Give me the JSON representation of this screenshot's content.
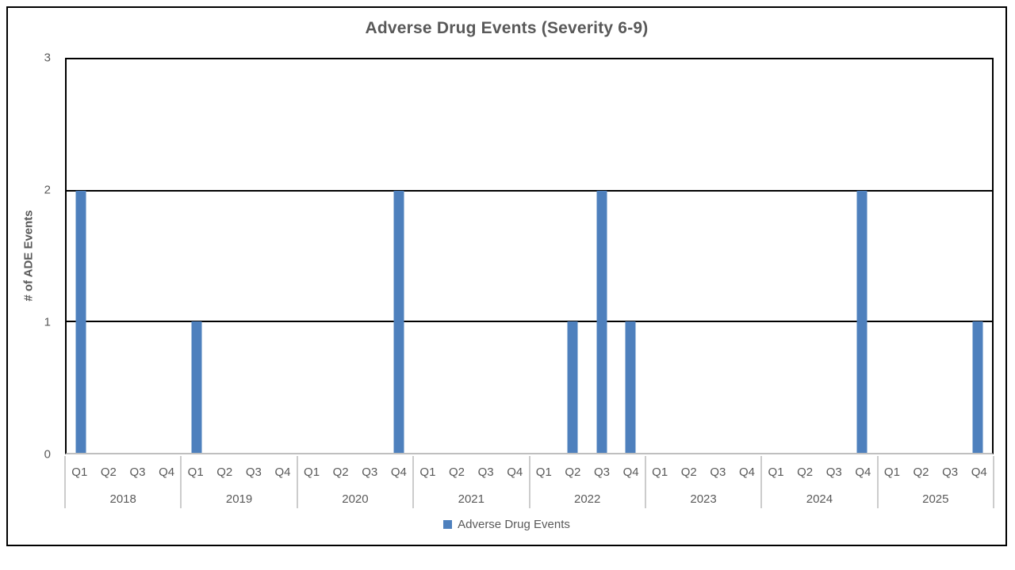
{
  "title": "Adverse Drug Events (Severity 6-9)",
  "y_axis": {
    "title": "# of ADE Events"
  },
  "legend": {
    "label": "Adverse Drug Events"
  },
  "colors": {
    "bar": "#4E80BD",
    "text": "#595959",
    "gridline": "#000000",
    "axis_line": "#BFBFBF",
    "year_separator": "#CCCCCC",
    "frame_border": "#000000"
  },
  "chart_data": {
    "type": "bar",
    "title": "Adverse Drug Events (Severity 6-9)",
    "xlabel": "",
    "ylabel": "# of ADE Events",
    "ylim": [
      0,
      3
    ],
    "yticks": [
      0,
      1,
      2,
      3
    ],
    "gridlines_y": [
      1,
      2
    ],
    "grid": "horizontal major gridlines",
    "legend_position": "bottom",
    "bar_color": "#4E80BD",
    "years": [
      "2018",
      "2019",
      "2020",
      "2021",
      "2022",
      "2023",
      "2024",
      "2025"
    ],
    "quarters": [
      "Q1",
      "Q2",
      "Q3",
      "Q4"
    ],
    "series": [
      {
        "name": "Adverse Drug Events",
        "values_by_year": [
          [
            2,
            0,
            0,
            0
          ],
          [
            1,
            0,
            0,
            0
          ],
          [
            0,
            0,
            0,
            2
          ],
          [
            0,
            0,
            0,
            0
          ],
          [
            0,
            1,
            2,
            1
          ],
          [
            0,
            0,
            0,
            0
          ],
          [
            0,
            0,
            0,
            2
          ],
          [
            0,
            0,
            0,
            1
          ]
        ]
      }
    ]
  }
}
